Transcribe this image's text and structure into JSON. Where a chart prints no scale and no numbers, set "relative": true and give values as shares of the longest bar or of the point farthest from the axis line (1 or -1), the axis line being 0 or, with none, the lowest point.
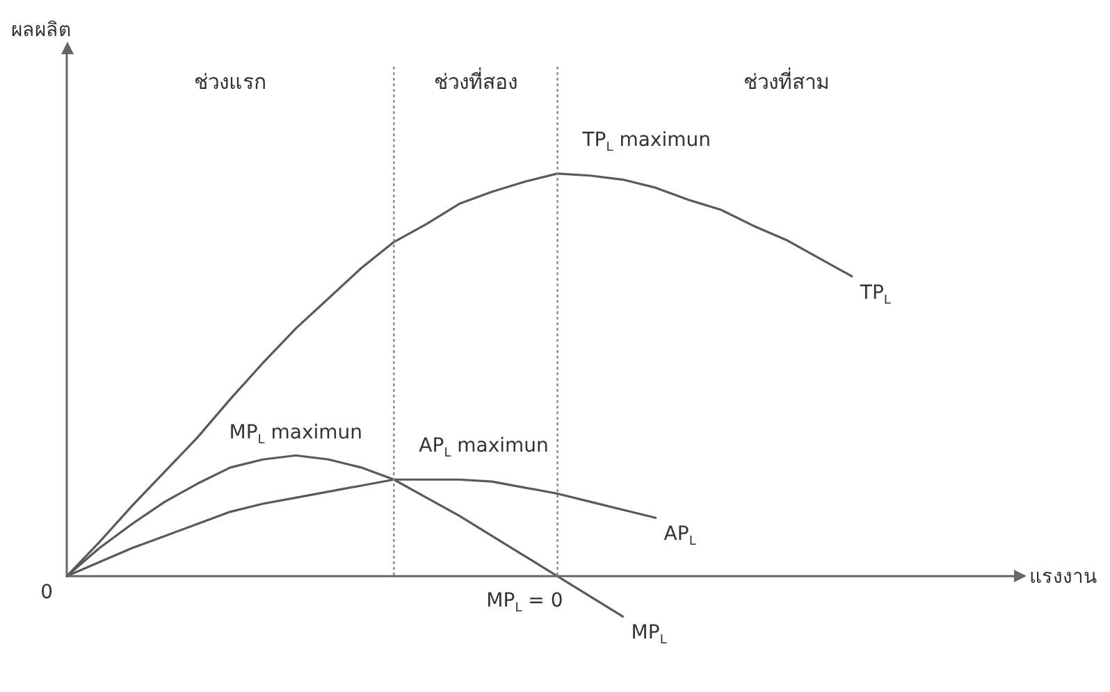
{
  "chart_data": {
    "type": "line",
    "relative": true,
    "xlabel": "แรงงาน",
    "tick_labels": false,
    "grid": false,
    "legend": false,
    "marker": "none",
    "categories": [
      null,
      null,
      null,
      null,
      null,
      null,
      null,
      null,
      null,
      null,
      null,
      null,
      null,
      null,
      null,
      null,
      null,
      null,
      null,
      null,
      null,
      null,
      null,
      null,
      null,
      null,
      null,
      null,
      null,
      null
    ],
    "series": [
      {
        "name": "TP$_{L}$",
        "color": "#595959",
        "values": [
          0,
          0.085,
          0.175,
          0.26,
          0.345,
          0.44,
          0.53,
          0.615,
          0.69,
          0.765,
          0.83,
          0.875,
          0.925,
          0.955,
          0.98,
          1.0,
          0.995,
          0.985,
          0.965,
          0.935,
          0.91,
          0.87,
          0.835,
          0.79,
          0.745,
          null,
          null,
          null,
          null,
          null
        ]
      },
      {
        "name": "MP$_{L}$",
        "color": "#595959",
        "values": [
          0,
          0.07,
          0.13,
          0.185,
          0.23,
          0.27,
          0.29,
          0.3,
          0.29,
          0.27,
          0.24,
          0.195,
          0.15,
          0.1,
          0.05,
          0,
          -0.05,
          -0.1,
          null,
          null,
          null,
          null,
          null,
          null,
          null,
          null,
          null,
          null,
          null,
          null
        ]
      },
      {
        "name": "AP$_{L}$",
        "color": "#595959",
        "values": [
          0,
          0.035,
          0.07,
          0.1,
          0.13,
          0.16,
          0.18,
          0.195,
          0.21,
          0.225,
          0.24,
          0.24,
          0.24,
          0.235,
          0.22,
          0.205,
          0.185,
          0.165,
          0.145,
          null,
          null,
          null,
          null,
          null,
          null,
          null,
          null,
          null,
          null,
          null
        ]
      }
    ],
    "annotations": [
      "ผลผลิต",
      "0",
      "ช่วงแรก",
      "ช่วงที่สอง",
      "ช่วงที่สาม",
      "TP$_{L}$ maximun",
      "MP$_{L}$ maximun",
      "AP$_{L}$ maximun",
      "MP$_{L}$ = 0"
    ]
  }
}
